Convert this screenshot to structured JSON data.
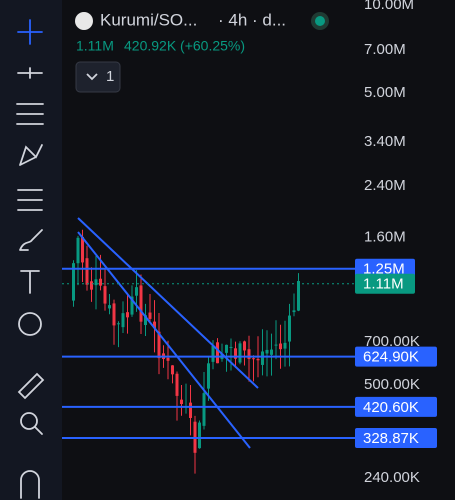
{
  "header": {
    "symbol": "Kurumi/SO...",
    "interval": "· 4h · d...",
    "price": "1.11M",
    "change": "420.92K (+60.25%)",
    "dropdown": "1"
  },
  "price_axis": {
    "log_scale": true,
    "range": [
      240000,
      10000000
    ],
    "ticks": [
      {
        "value": 10000000,
        "label": "10.00M"
      },
      {
        "value": 7000000,
        "label": "7.00M"
      },
      {
        "value": 5000000,
        "label": "5.00M"
      },
      {
        "value": 3400000,
        "label": "3.40M"
      },
      {
        "value": 2400000,
        "label": "2.40M"
      },
      {
        "value": 1600000,
        "label": "1.60M"
      },
      {
        "value": 700000,
        "label": "700.00K"
      },
      {
        "value": 500000,
        "label": "500.00K"
      },
      {
        "value": 240000,
        "label": "240.00K"
      }
    ]
  },
  "price_lines": [
    {
      "value": 1250000,
      "label": "1.25M",
      "color": "#2962ff",
      "style": "solid"
    },
    {
      "value": 1110000,
      "label": "1.11M",
      "color": "#089981",
      "style": "dashed"
    },
    {
      "value": 624900,
      "label": "624.90K",
      "color": "#2962ff",
      "style": "solid"
    },
    {
      "value": 420600,
      "label": "420.60K",
      "color": "#2962ff",
      "style": "solid"
    },
    {
      "value": 328870,
      "label": "328.87K",
      "color": "#2962ff",
      "style": "solid"
    }
  ]
}
